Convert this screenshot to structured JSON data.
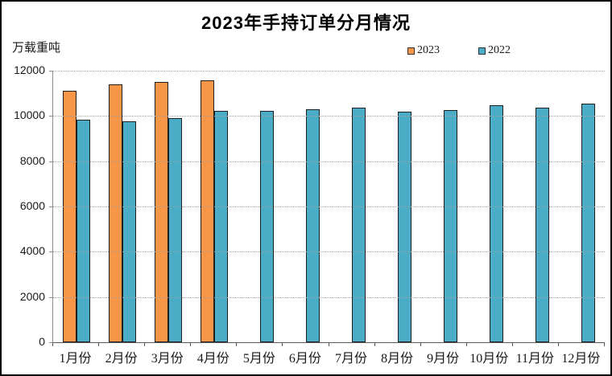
{
  "title": "2023年手持订单分月情况",
  "y_axis_unit": "万载重吨",
  "legend": {
    "items": [
      {
        "label": "2023",
        "color": "#F79646"
      },
      {
        "label": "2022",
        "color": "#4BACC6"
      }
    ]
  },
  "colors": {
    "series_2023": "#F79646",
    "series_2022": "#4BACC6",
    "bar_outline": "#1f1f1f",
    "gridline": "#a0a0a0"
  },
  "chart_data": {
    "type": "bar",
    "title": "2023年手持订单分月情况",
    "ylabel": "万载重吨",
    "xlabel": "",
    "categories": [
      "1月份",
      "2月份",
      "3月份",
      "4月份",
      "5月份",
      "6月份",
      "7月份",
      "8月份",
      "9月份",
      "10月份",
      "11月份",
      "12月份"
    ],
    "series": [
      {
        "name": "2023",
        "color": "#F79646",
        "values": [
          11100,
          11400,
          11500,
          11580,
          null,
          null,
          null,
          null,
          null,
          null,
          null,
          null
        ]
      },
      {
        "name": "2022",
        "color": "#4BACC6",
        "values": [
          9820,
          9760,
          9920,
          10220,
          10210,
          10300,
          10360,
          10190,
          10250,
          10470,
          10350,
          10550
        ]
      }
    ],
    "ylim": [
      0,
      12000
    ],
    "yticks": [
      0,
      2000,
      4000,
      6000,
      8000,
      10000,
      12000
    ],
    "grid": "horizontal-dotted",
    "legend_position": "top-right-above-plot"
  }
}
